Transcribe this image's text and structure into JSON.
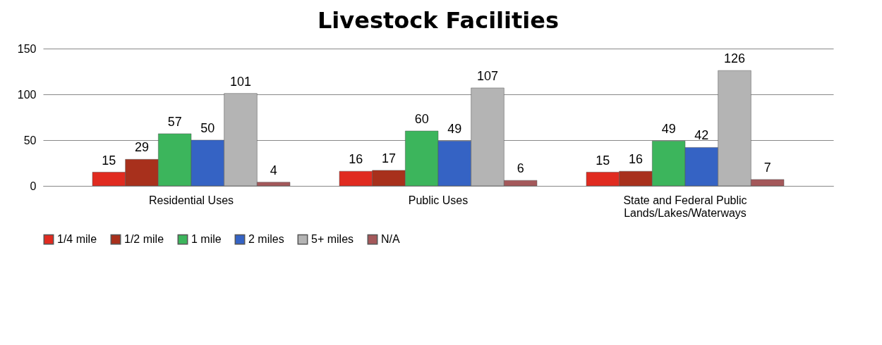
{
  "chart_data": {
    "type": "bar",
    "title": "Livestock Facilities",
    "categories": [
      "Residential Uses",
      "Public Uses",
      "State and Federal Public Lands/Lakes/Waterways"
    ],
    "series": [
      {
        "name": "1/4 mile",
        "color": "#e02b20",
        "values": [
          15,
          16,
          15
        ]
      },
      {
        "name": "1/2 mile",
        "color": "#a8301c",
        "values": [
          29,
          17,
          16
        ]
      },
      {
        "name": "1 mile",
        "color": "#3cb55c",
        "values": [
          57,
          60,
          49
        ]
      },
      {
        "name": "2 miles",
        "color": "#3563c4",
        "values": [
          50,
          49,
          42
        ]
      },
      {
        "name": "5+ miles",
        "color": "#b4b4b4",
        "values": [
          101,
          107,
          126
        ]
      },
      {
        "name": "N/A",
        "color": "#a4585a",
        "values": [
          4,
          6,
          7
        ]
      }
    ],
    "ylim": [
      0,
      150
    ],
    "yticks": [
      0,
      50,
      100,
      150
    ],
    "grid": "y",
    "legend": "bottom",
    "data_labels": true
  }
}
